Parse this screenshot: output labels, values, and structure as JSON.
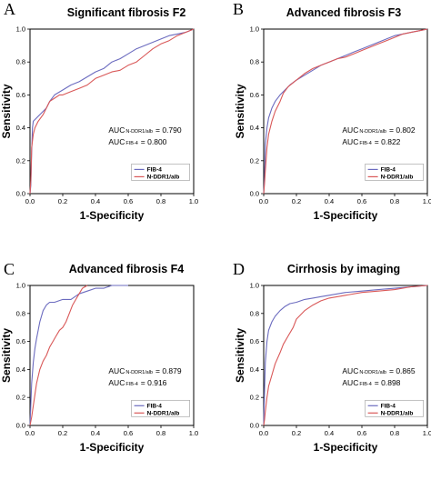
{
  "chart_data": [
    {
      "type": "line",
      "panel_label": "A",
      "title": "Significant fibrosis F2",
      "xlabel": "1-Specificity",
      "ylabel": "Sensitivity",
      "xlim": [
        0,
        1
      ],
      "ylim": [
        0,
        1
      ],
      "xticks": [
        "0.0",
        "0.2",
        "0.4",
        "0.6",
        "0.8",
        "1.0"
      ],
      "yticks": [
        "0.0",
        "0.2",
        "0.4",
        "0.6",
        "0.8",
        "1.0"
      ],
      "auc": [
        {
          "prefix": "AUC",
          "sub": "N-DDR1/alb",
          "value": "= 0.790"
        },
        {
          "prefix": "AUC",
          "sub": "FIB-4",
          "value": "= 0.800"
        }
      ],
      "legend_position": "bottom-right",
      "series": [
        {
          "name": "FIB-4",
          "color": "#6b6bbf",
          "x": [
            0,
            0.005,
            0.01,
            0.015,
            0.02,
            0.04,
            0.06,
            0.08,
            0.1,
            0.12,
            0.15,
            0.2,
            0.25,
            0.3,
            0.35,
            0.4,
            0.45,
            0.5,
            0.55,
            0.6,
            0.65,
            0.7,
            0.75,
            0.8,
            0.85,
            0.9,
            0.95,
            1.0
          ],
          "y": [
            0,
            0.05,
            0.25,
            0.4,
            0.44,
            0.46,
            0.48,
            0.5,
            0.52,
            0.56,
            0.6,
            0.63,
            0.66,
            0.68,
            0.71,
            0.74,
            0.76,
            0.8,
            0.82,
            0.85,
            0.88,
            0.9,
            0.92,
            0.94,
            0.96,
            0.97,
            0.98,
            1.0
          ]
        },
        {
          "name": "N-DDR1/alb",
          "color": "#d95858",
          "x": [
            0,
            0.005,
            0.01,
            0.02,
            0.03,
            0.05,
            0.08,
            0.1,
            0.12,
            0.15,
            0.18,
            0.2,
            0.25,
            0.3,
            0.35,
            0.4,
            0.45,
            0.5,
            0.55,
            0.6,
            0.65,
            0.7,
            0.75,
            0.8,
            0.85,
            0.9,
            0.95,
            1.0
          ],
          "y": [
            0,
            0.08,
            0.28,
            0.36,
            0.4,
            0.44,
            0.48,
            0.52,
            0.56,
            0.58,
            0.6,
            0.6,
            0.62,
            0.64,
            0.66,
            0.7,
            0.72,
            0.74,
            0.75,
            0.78,
            0.8,
            0.84,
            0.88,
            0.91,
            0.93,
            0.96,
            0.98,
            1.0
          ]
        }
      ]
    },
    {
      "type": "line",
      "panel_label": "B",
      "title": "Advanced fibrosis F3",
      "xlabel": "1-Specificity",
      "ylabel": "Sensitivity",
      "xlim": [
        0,
        1
      ],
      "ylim": [
        0,
        1
      ],
      "xticks": [
        "0.0",
        "0.2",
        "0.4",
        "0.6",
        "0.8",
        "1.0"
      ],
      "yticks": [
        "0.0",
        "0.2",
        "0.4",
        "0.6",
        "0.8",
        "1.0"
      ],
      "auc": [
        {
          "prefix": "AUC",
          "sub": "N-DDR1/alb",
          "value": "= 0.802"
        },
        {
          "prefix": "AUC",
          "sub": "FIB-4",
          "value": "= 0.822"
        }
      ],
      "legend_position": "bottom-right",
      "series": [
        {
          "name": "FIB-4",
          "color": "#6b6bbf",
          "x": [
            0,
            0.005,
            0.01,
            0.02,
            0.03,
            0.05,
            0.07,
            0.1,
            0.13,
            0.16,
            0.2,
            0.25,
            0.3,
            0.35,
            0.4,
            0.45,
            0.5,
            0.55,
            0.6,
            0.65,
            0.7,
            0.75,
            0.8,
            0.85,
            0.9,
            0.95,
            1.0
          ],
          "y": [
            0,
            0.1,
            0.3,
            0.4,
            0.46,
            0.52,
            0.56,
            0.6,
            0.63,
            0.66,
            0.69,
            0.72,
            0.75,
            0.78,
            0.8,
            0.82,
            0.84,
            0.86,
            0.88,
            0.9,
            0.92,
            0.94,
            0.96,
            0.97,
            0.98,
            0.99,
            1.0
          ]
        },
        {
          "name": "N-DDR1/alb",
          "color": "#d95858",
          "x": [
            0,
            0.005,
            0.01,
            0.02,
            0.03,
            0.05,
            0.07,
            0.1,
            0.12,
            0.15,
            0.2,
            0.25,
            0.3,
            0.35,
            0.4,
            0.45,
            0.5,
            0.55,
            0.6,
            0.65,
            0.7,
            0.75,
            0.8,
            0.85,
            0.9,
            0.95,
            1.0
          ],
          "y": [
            0,
            0.06,
            0.14,
            0.28,
            0.36,
            0.44,
            0.5,
            0.56,
            0.61,
            0.65,
            0.69,
            0.73,
            0.76,
            0.78,
            0.8,
            0.82,
            0.83,
            0.85,
            0.87,
            0.89,
            0.91,
            0.93,
            0.95,
            0.97,
            0.98,
            0.99,
            1.0
          ]
        }
      ]
    },
    {
      "type": "line",
      "panel_label": "C",
      "title": "Advanced fibrosis F4",
      "xlabel": "1-Specificity",
      "ylabel": "Sensitivity",
      "xlim": [
        0,
        1
      ],
      "ylim": [
        0,
        1
      ],
      "xticks": [
        "0.0",
        "0.2",
        "0.4",
        "0.6",
        "0.8",
        "1.0"
      ],
      "yticks": [
        "0.0",
        "0.2",
        "0.4",
        "0.6",
        "0.8",
        "1.0"
      ],
      "auc": [
        {
          "prefix": "AUC",
          "sub": "N-DDR1/alb",
          "value": "= 0.879"
        },
        {
          "prefix": "AUC",
          "sub": "FIB-4",
          "value": "= 0.916"
        }
      ],
      "legend_position": "bottom-right",
      "series": [
        {
          "name": "FIB-4",
          "color": "#6b6bbf",
          "x": [
            0,
            0.01,
            0.02,
            0.03,
            0.04,
            0.05,
            0.06,
            0.07,
            0.08,
            0.1,
            0.12,
            0.15,
            0.2,
            0.25,
            0.3,
            0.35,
            0.4,
            0.45,
            0.5,
            0.55,
            0.6
          ],
          "y": [
            0,
            0.3,
            0.45,
            0.55,
            0.62,
            0.68,
            0.74,
            0.78,
            0.82,
            0.86,
            0.88,
            0.88,
            0.9,
            0.9,
            0.94,
            0.96,
            0.98,
            0.98,
            1.0,
            1.0,
            1.0
          ]
        },
        {
          "name": "N-DDR1/alb",
          "color": "#d95858",
          "x": [
            0,
            0.01,
            0.02,
            0.03,
            0.04,
            0.06,
            0.08,
            0.1,
            0.12,
            0.14,
            0.16,
            0.18,
            0.2,
            0.22,
            0.24,
            0.26,
            0.28,
            0.3,
            0.32,
            0.35
          ],
          "y": [
            0,
            0.06,
            0.14,
            0.22,
            0.3,
            0.4,
            0.46,
            0.5,
            0.56,
            0.6,
            0.64,
            0.68,
            0.7,
            0.74,
            0.8,
            0.86,
            0.9,
            0.94,
            0.98,
            1.0
          ]
        }
      ]
    },
    {
      "type": "line",
      "panel_label": "D",
      "title": "Cirrhosis by imaging",
      "xlabel": "1-Specificity",
      "ylabel": "Sensitivity",
      "xlim": [
        0,
        1
      ],
      "ylim": [
        0,
        1
      ],
      "xticks": [
        "0.0",
        "0.2",
        "0.4",
        "0.6",
        "0.8",
        "1.0"
      ],
      "yticks": [
        "0.0",
        "0.2",
        "0.4",
        "0.6",
        "0.8",
        "1.0"
      ],
      "auc": [
        {
          "prefix": "AUC",
          "sub": "N-DDR1/alb",
          "value": "= 0.865"
        },
        {
          "prefix": "AUC",
          "sub": "FIB-4",
          "value": "= 0.898"
        }
      ],
      "legend_position": "bottom-right",
      "series": [
        {
          "name": "FIB-4",
          "color": "#6b6bbf",
          "x": [
            0,
            0.005,
            0.01,
            0.02,
            0.03,
            0.05,
            0.07,
            0.1,
            0.13,
            0.16,
            0.2,
            0.25,
            0.3,
            0.35,
            0.4,
            0.5,
            0.6,
            0.7,
            0.8,
            0.9,
            1.0
          ],
          "y": [
            0,
            0.25,
            0.45,
            0.6,
            0.68,
            0.74,
            0.78,
            0.82,
            0.85,
            0.87,
            0.88,
            0.9,
            0.91,
            0.92,
            0.93,
            0.95,
            0.96,
            0.97,
            0.98,
            0.99,
            1.0
          ]
        },
        {
          "name": "N-DDR1/alb",
          "color": "#d95858",
          "x": [
            0,
            0.005,
            0.01,
            0.02,
            0.03,
            0.05,
            0.07,
            0.1,
            0.12,
            0.15,
            0.18,
            0.2,
            0.25,
            0.3,
            0.35,
            0.4,
            0.5,
            0.6,
            0.7,
            0.8,
            0.9,
            1.0
          ],
          "y": [
            0,
            0.04,
            0.1,
            0.2,
            0.28,
            0.36,
            0.44,
            0.52,
            0.58,
            0.64,
            0.7,
            0.76,
            0.82,
            0.86,
            0.89,
            0.91,
            0.93,
            0.95,
            0.96,
            0.97,
            0.99,
            1.0
          ]
        }
      ]
    }
  ]
}
